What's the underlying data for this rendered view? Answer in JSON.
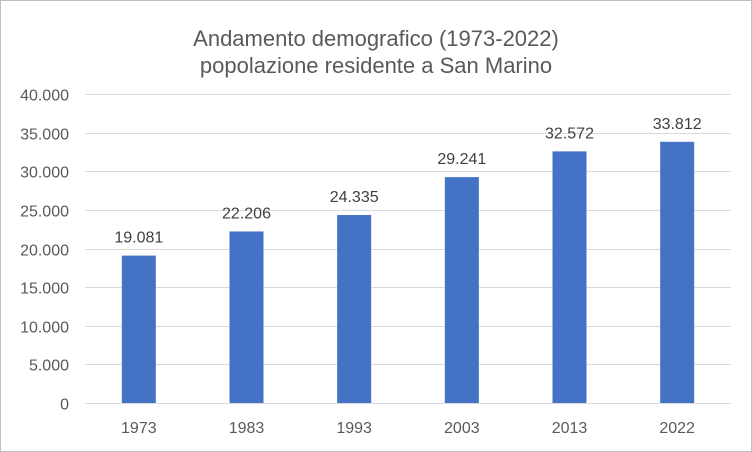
{
  "chart_data": {
    "type": "bar",
    "title": "Andamento demografico (1973-2022)",
    "subtitle": "popolazione residente a San Marino",
    "categories": [
      "1973",
      "1983",
      "1993",
      "2003",
      "2013",
      "2022"
    ],
    "values": [
      19081,
      22206,
      24335,
      29241,
      32572,
      33812
    ],
    "value_labels": [
      "19.081",
      "22.206",
      "24.335",
      "29.241",
      "32.572",
      "33.812"
    ],
    "ylim": [
      0,
      40000
    ],
    "yticks": [
      0,
      5000,
      10000,
      15000,
      20000,
      25000,
      30000,
      35000,
      40000
    ],
    "ytick_labels": [
      "0",
      "5.000",
      "10.000",
      "15.000",
      "20.000",
      "25.000",
      "30.000",
      "35.000",
      "40.000"
    ],
    "xlabel": "",
    "ylabel": "",
    "grid": true,
    "legend": "none",
    "bar_color": "#4472c4",
    "grid_color": "#d9d9d9"
  }
}
